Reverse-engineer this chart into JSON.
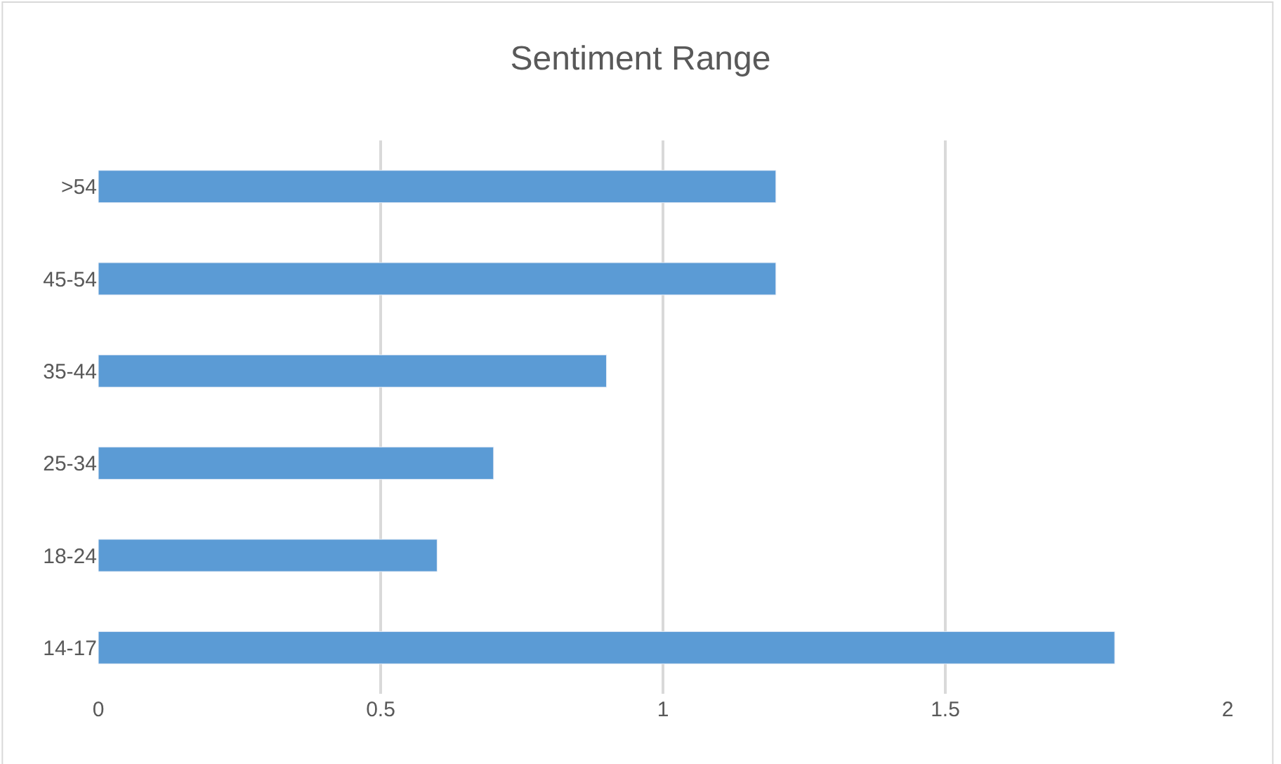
{
  "chart_data": {
    "type": "bar",
    "orientation": "horizontal",
    "title": "Sentiment Range",
    "categories": [
      ">54",
      "45-54",
      "35-44",
      "25-34",
      "18-24",
      "14-17"
    ],
    "values": [
      1.2,
      1.2,
      0.9,
      0.7,
      0.6,
      1.8
    ],
    "color": "#5b9bd5",
    "xlim": [
      0,
      2
    ],
    "xticks": [
      0,
      0.5,
      1,
      1.5,
      2
    ],
    "grid": "x",
    "legend": false
  }
}
